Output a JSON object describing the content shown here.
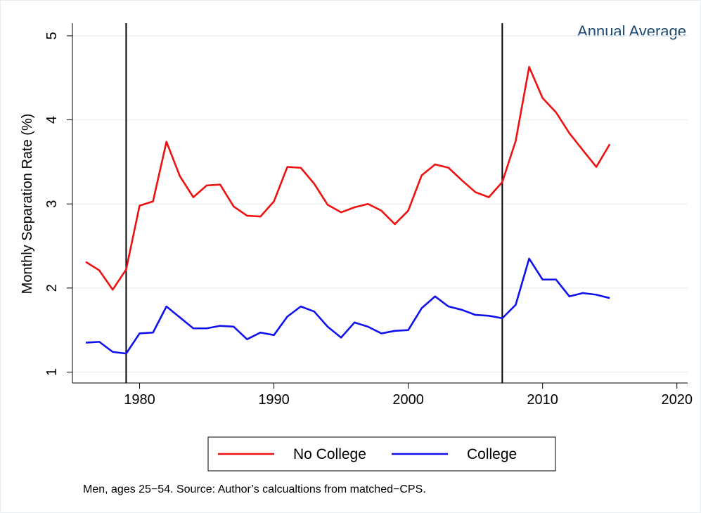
{
  "chart_data": {
    "type": "line",
    "y_label": "Monthly Separation Rate (%)",
    "annotation": "Annual Average",
    "note": "Men, ages 25−54. Source: Author’s calcualtions from matched−CPS.",
    "x": [
      1976,
      1977,
      1978,
      1979,
      1980,
      1981,
      1982,
      1983,
      1984,
      1985,
      1986,
      1987,
      1988,
      1989,
      1990,
      1991,
      1992,
      1993,
      1994,
      1995,
      1996,
      1997,
      1998,
      1999,
      2000,
      2001,
      2002,
      2003,
      2004,
      2005,
      2006,
      2007,
      2008,
      2009,
      2010,
      2011,
      2012,
      2013,
      2014,
      2015
    ],
    "series": [
      {
        "name": "No College",
        "color": "#ee1111",
        "values": [
          2.31,
          2.21,
          1.98,
          2.22,
          2.98,
          3.03,
          3.74,
          3.33,
          3.08,
          3.22,
          3.23,
          2.97,
          2.86,
          2.85,
          3.03,
          3.44,
          3.43,
          3.24,
          2.99,
          2.9,
          2.96,
          3.0,
          2.92,
          2.76,
          2.92,
          3.34,
          3.47,
          3.43,
          3.28,
          3.14,
          3.08,
          3.26,
          3.75,
          4.63,
          4.26,
          4.09,
          3.84,
          3.64,
          3.44,
          3.71
        ]
      },
      {
        "name": "College",
        "color": "#1111ee",
        "values": [
          1.35,
          1.36,
          1.24,
          1.22,
          1.46,
          1.47,
          1.78,
          1.65,
          1.52,
          1.52,
          1.55,
          1.54,
          1.39,
          1.47,
          1.44,
          1.66,
          1.78,
          1.72,
          1.54,
          1.41,
          1.59,
          1.54,
          1.46,
          1.49,
          1.5,
          1.76,
          1.9,
          1.78,
          1.74,
          1.68,
          1.67,
          1.64,
          1.8,
          2.35,
          2.1,
          2.1,
          1.9,
          1.94,
          1.92,
          1.88
        ]
      }
    ],
    "xlines": [
      1979,
      2007
    ],
    "xlim": [
      1975,
      2020.8
    ],
    "ylim": [
      0.87,
      5.15
    ],
    "xticks": [
      1980,
      1990,
      2000,
      2010,
      2020
    ],
    "yticks": [
      1,
      2,
      3,
      4,
      5
    ],
    "grid": true,
    "legend": "bottom"
  }
}
